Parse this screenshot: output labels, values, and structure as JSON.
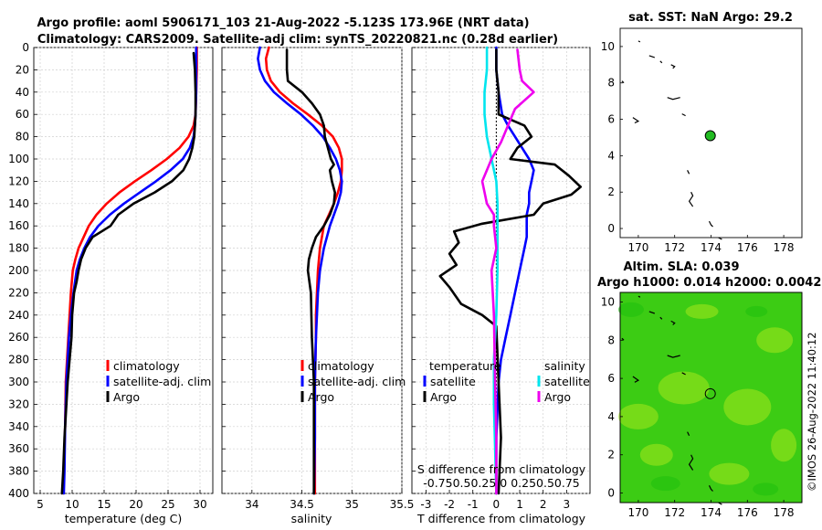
{
  "figure": {
    "title_line1": "Argo profile: aoml 5906171_103 21-Aug-2022 -5.123S 173.96E (NRT data)",
    "title_line2": "Climatology: CARS2009. Satellite-adj clim: synTS_20220821.nc (0.28d earlier)",
    "copyright": "©IMOS 26-Aug-2022 11:40:12"
  },
  "colors": {
    "climatology": "#ff0000",
    "satellite": "#0000ff",
    "argo": "#000000",
    "s_satellite": "#00e5ee",
    "s_argo": "#ee00ee",
    "sla_map": "#3ccc14",
    "float_marker": "#22bb22"
  },
  "chart_data": [
    {
      "type": "line",
      "id": "temperature_profile",
      "xlabel": "temperature (deg C)",
      "ylabel": "",
      "xlim": [
        4,
        32
      ],
      "ylim": [
        400,
        0
      ],
      "xticks": [
        5,
        10,
        15,
        20,
        25,
        30
      ],
      "yticks": [
        0,
        20,
        40,
        60,
        80,
        100,
        120,
        140,
        160,
        180,
        200,
        220,
        240,
        260,
        280,
        300,
        320,
        340,
        360,
        380,
        400
      ],
      "grid": true,
      "legend": {
        "position": "bottom-right",
        "entries": [
          "climatology",
          "satellite-adj. clim",
          "Argo"
        ]
      },
      "series": [
        {
          "name": "climatology",
          "color": "#ff0000",
          "x": [
            29.5,
            29.5,
            29.4,
            29.3,
            29.0,
            28.2,
            26.8,
            24.8,
            22.4,
            19.8,
            17.4,
            15.4,
            13.8,
            12.6,
            11.8,
            11.0,
            10.5,
            10.1,
            9.8,
            9.6,
            9.4,
            9.2,
            9.0,
            8.9,
            8.7,
            8.6
          ],
          "y": [
            0,
            20,
            40,
            60,
            70,
            80,
            90,
            100,
            110,
            120,
            130,
            140,
            150,
            160,
            170,
            180,
            190,
            200,
            220,
            240,
            260,
            280,
            300,
            340,
            380,
            400
          ]
        },
        {
          "name": "satellite-adj. clim",
          "color": "#0000ff",
          "x": [
            29.4,
            29.4,
            29.4,
            29.3,
            29.2,
            29.0,
            28.4,
            27.3,
            25.4,
            23.1,
            20.6,
            18.1,
            15.9,
            14.1,
            12.8,
            11.9,
            11.2,
            10.7,
            10.2,
            9.8,
            9.5,
            9.3,
            9.1,
            8.9,
            8.8,
            8.7
          ],
          "y": [
            0,
            20,
            40,
            60,
            70,
            80,
            90,
            100,
            110,
            120,
            130,
            140,
            150,
            160,
            170,
            180,
            190,
            200,
            220,
            240,
            260,
            280,
            300,
            340,
            380,
            400
          ]
        },
        {
          "name": "Argo",
          "color": "#000000",
          "x": [
            29.0,
            29.2,
            29.3,
            29.3,
            29.2,
            29.1,
            28.8,
            28.3,
            27.4,
            25.6,
            22.9,
            19.6,
            17.2,
            16.0,
            14.6,
            13.2,
            12.1,
            11.4,
            11.0,
            10.7,
            10.3,
            10.0,
            9.9,
            9.6,
            9.3,
            9.1,
            8.8,
            8.6,
            8.4
          ],
          "y": [
            5,
            20,
            40,
            60,
            70,
            80,
            90,
            100,
            110,
            120,
            130,
            140,
            150,
            160,
            165,
            170,
            180,
            190,
            200,
            210,
            220,
            240,
            260,
            280,
            300,
            320,
            350,
            380,
            400
          ]
        }
      ]
    },
    {
      "type": "line",
      "id": "salinity_profile",
      "xlabel": "salinity",
      "ylabel": "",
      "xlim": [
        33.7,
        35.5
      ],
      "ylim": [
        400,
        0
      ],
      "xticks": [
        34,
        34.5,
        35,
        35.5
      ],
      "xticklabels": [
        "34",
        "34.5",
        "35",
        "35.5"
      ],
      "grid": true,
      "legend": {
        "position": "bottom-right",
        "entries": [
          "climatology",
          "satellite-adj. clim",
          "Argo"
        ]
      },
      "series": [
        {
          "name": "climatology",
          "color": "#ff0000",
          "x": [
            34.17,
            34.14,
            34.15,
            34.19,
            34.28,
            34.41,
            34.56,
            34.7,
            34.81,
            34.87,
            34.9,
            34.9,
            34.89,
            34.86,
            34.82,
            34.77,
            34.72,
            34.68,
            34.66,
            34.65,
            34.64,
            34.64,
            34.63,
            34.63,
            34.63
          ],
          "y": [
            0,
            10,
            20,
            30,
            40,
            50,
            60,
            70,
            80,
            90,
            100,
            110,
            120,
            130,
            140,
            150,
            160,
            180,
            200,
            220,
            240,
            260,
            300,
            350,
            400
          ]
        },
        {
          "name": "satellite-adj. clim",
          "color": "#0000ff",
          "x": [
            34.08,
            34.06,
            34.08,
            34.13,
            34.22,
            34.35,
            34.49,
            34.61,
            34.71,
            34.78,
            34.84,
            34.88,
            34.9,
            34.89,
            34.86,
            34.82,
            34.78,
            34.72,
            34.68,
            34.66,
            34.65,
            34.64,
            34.63,
            34.63,
            34.62
          ],
          "y": [
            0,
            10,
            20,
            30,
            40,
            50,
            60,
            70,
            80,
            90,
            100,
            110,
            120,
            130,
            140,
            150,
            160,
            180,
            200,
            220,
            240,
            260,
            300,
            350,
            400
          ]
        },
        {
          "name": "Argo",
          "color": "#000000",
          "x": [
            34.35,
            34.35,
            34.36,
            34.5,
            34.6,
            34.68,
            34.72,
            34.73,
            34.76,
            34.79,
            34.82,
            34.78,
            34.8,
            34.83,
            34.82,
            34.78,
            34.72,
            34.68,
            34.64,
            34.6,
            34.57,
            34.56,
            34.59,
            34.6,
            34.62,
            34.62,
            34.62
          ],
          "y": [
            2,
            20,
            30,
            40,
            50,
            60,
            70,
            80,
            90,
            100,
            105,
            110,
            120,
            130,
            140,
            150,
            160,
            165,
            170,
            180,
            190,
            200,
            220,
            260,
            300,
            350,
            400
          ]
        }
      ]
    },
    {
      "type": "line",
      "id": "difference_profile",
      "xlabel": "T difference from climatology",
      "top_axis_label": "S difference from climatology",
      "xlim": [
        -3.6,
        4.0
      ],
      "ylim": [
        400,
        0
      ],
      "xticks": [
        -3,
        -2,
        -1,
        0,
        1,
        2,
        3
      ],
      "xticklabels": [
        "-3",
        "-2",
        "-1",
        "0",
        "1",
        "2",
        "3"
      ],
      "s_ticks_label": "-0.750.50.25 0 0.250.50.75",
      "grid": true,
      "legend": {
        "position": "bottom",
        "temperature_header": "temperature",
        "salinity_header": "salinity",
        "entries": [
          "satellite",
          "Argo",
          "satellite",
          "Argo"
        ]
      },
      "series": [
        {
          "name": "T satellite",
          "color": "#0000ff",
          "x": [
            0.0,
            0.0,
            0.1,
            0.25,
            0.5,
            0.8,
            1.1,
            1.4,
            1.6,
            1.5,
            1.4,
            1.4,
            1.3,
            1.3,
            1.3,
            1.2,
            1.1,
            1.0,
            0.8,
            0.6,
            0.4,
            0.2,
            0.1,
            0.0,
            0.0
          ],
          "y": [
            0,
            20,
            40,
            60,
            70,
            80,
            90,
            100,
            110,
            120,
            130,
            140,
            150,
            160,
            170,
            180,
            190,
            200,
            220,
            240,
            260,
            280,
            300,
            350,
            400
          ]
        },
        {
          "name": "T Argo",
          "color": "#000000",
          "x": [
            0.0,
            0.0,
            0.1,
            0.1,
            1.2,
            1.5,
            0.9,
            0.6,
            2.5,
            3.1,
            3.6,
            3.2,
            2.0,
            1.6,
            -0.6,
            -1.8,
            -1.6,
            -2.0,
            -1.7,
            -2.4,
            -2.0,
            -1.5,
            -0.6,
            0.0,
            0.1,
            0.2,
            0.1
          ],
          "y": [
            2,
            20,
            40,
            60,
            70,
            80,
            90,
            100,
            105,
            115,
            125,
            132,
            140,
            150,
            158,
            165,
            175,
            185,
            195,
            205,
            215,
            230,
            240,
            250,
            300,
            350,
            400
          ]
        },
        {
          "name": "S satellite",
          "color": "#00e5ee",
          "x": [
            -0.4,
            -0.4,
            -0.5,
            -0.5,
            -0.4,
            -0.2,
            0.0,
            0.05,
            0.05,
            0.05,
            0.05,
            0.0,
            -0.1,
            -0.1,
            -0.05,
            0.0
          ],
          "y": [
            0,
            20,
            40,
            60,
            80,
            100,
            120,
            140,
            160,
            180,
            200,
            240,
            280,
            320,
            360,
            400
          ]
        },
        {
          "name": "S Argo",
          "color": "#ee00ee",
          "x": [
            0.9,
            1.0,
            1.1,
            1.6,
            0.8,
            0.5,
            0.2,
            -0.2,
            -0.6,
            -0.4,
            -0.1,
            -0.1,
            0.0,
            -0.2,
            -0.1,
            -0.05,
            0.0,
            0.0
          ],
          "y": [
            2,
            20,
            30,
            40,
            55,
            70,
            85,
            100,
            120,
            140,
            150,
            160,
            180,
            200,
            240,
            300,
            350,
            400
          ]
        }
      ]
    },
    {
      "type": "scatter",
      "id": "sst_map",
      "title": "sat. SST: NaN Argo: 29.2",
      "xlim": [
        169,
        179
      ],
      "ylim": [
        -0.5,
        11
      ],
      "xticks": [
        170,
        172,
        174,
        176,
        178
      ],
      "yticks": [
        0,
        2,
        4,
        6,
        8,
        10
      ],
      "float_position": {
        "lon": 173.96,
        "lat": 5.1
      }
    },
    {
      "type": "heatmap",
      "id": "sla_map",
      "title_line1": "Altim. SLA: 0.039",
      "title_line2": "Argo h1000: 0.014 h2000: 0.0042",
      "xlim": [
        169,
        179
      ],
      "ylim": [
        -0.5,
        10.5
      ],
      "xticks": [
        170,
        172,
        174,
        176,
        178
      ],
      "yticks": [
        0,
        2,
        4,
        6,
        8,
        10
      ],
      "float_position": {
        "lon": 173.96,
        "lat": 5.2
      }
    }
  ]
}
